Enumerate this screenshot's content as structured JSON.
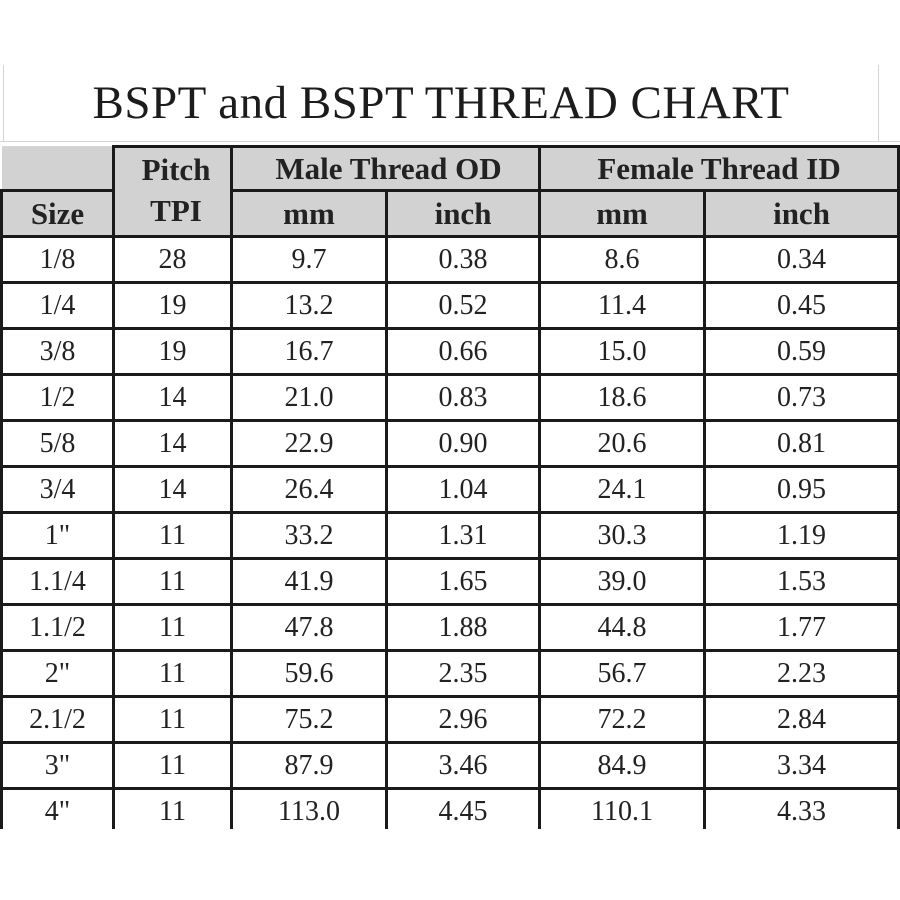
{
  "page_title": "BSPT and BSPT THREAD CHART",
  "colors": {
    "border_black": "#1a1a1a",
    "header_gray": "#d2d2d2",
    "group_header_gray": "#e9e9e9",
    "faint_gridline_gray": "#d5d5d5",
    "background": "#ffffff",
    "text": "#222222"
  },
  "chart_data": {
    "type": "table",
    "title": "BSPT and BSPT THREAD CHART",
    "header": {
      "size_label": "Size",
      "pitch_line1": "Pitch",
      "pitch_line2": "TPI",
      "male_group_label": "Male Thread OD",
      "female_group_label": "Female Thread ID",
      "male_mm_label": "mm",
      "male_inch_label": "inch",
      "female_mm_label": "mm",
      "female_inch_label": "inch"
    },
    "columns": [
      "Size",
      "Pitch TPI",
      "Male Thread OD mm",
      "Male Thread OD inch",
      "Female Thread ID mm",
      "Female Thread ID inch"
    ],
    "rows": [
      {
        "size": "1/8",
        "tpi": "28",
        "male_mm": "9.7",
        "male_inch": "0.38",
        "female_mm": "8.6",
        "female_inch": "0.34"
      },
      {
        "size": "1/4",
        "tpi": "19",
        "male_mm": "13.2",
        "male_inch": "0.52",
        "female_mm": "11.4",
        "female_inch": "0.45"
      },
      {
        "size": "3/8",
        "tpi": "19",
        "male_mm": "16.7",
        "male_inch": "0.66",
        "female_mm": "15.0",
        "female_inch": "0.59"
      },
      {
        "size": "1/2",
        "tpi": "14",
        "male_mm": "21.0",
        "male_inch": "0.83",
        "female_mm": "18.6",
        "female_inch": "0.73"
      },
      {
        "size": "5/8",
        "tpi": "14",
        "male_mm": "22.9",
        "male_inch": "0.90",
        "female_mm": "20.6",
        "female_inch": "0.81"
      },
      {
        "size": "3/4",
        "tpi": "14",
        "male_mm": "26.4",
        "male_inch": "1.04",
        "female_mm": "24.1",
        "female_inch": "0.95"
      },
      {
        "size": "1\"",
        "tpi": "11",
        "male_mm": "33.2",
        "male_inch": "1.31",
        "female_mm": "30.3",
        "female_inch": "1.19"
      },
      {
        "size": "1.1/4",
        "tpi": "11",
        "male_mm": "41.9",
        "male_inch": "1.65",
        "female_mm": "39.0",
        "female_inch": "1.53"
      },
      {
        "size": "1.1/2",
        "tpi": "11",
        "male_mm": "47.8",
        "male_inch": "1.88",
        "female_mm": "44.8",
        "female_inch": "1.77"
      },
      {
        "size": "2\"",
        "tpi": "11",
        "male_mm": "59.6",
        "male_inch": "2.35",
        "female_mm": "56.7",
        "female_inch": "2.23"
      },
      {
        "size": "2.1/2",
        "tpi": "11",
        "male_mm": "75.2",
        "male_inch": "2.96",
        "female_mm": "72.2",
        "female_inch": "2.84"
      },
      {
        "size": "3\"",
        "tpi": "11",
        "male_mm": "87.9",
        "male_inch": "3.46",
        "female_mm": "84.9",
        "female_inch": "3.34"
      },
      {
        "size": "4\"",
        "tpi": "11",
        "male_mm": "113.0",
        "male_inch": "4.45",
        "female_mm": "110.1",
        "female_inch": "4.33"
      }
    ]
  }
}
